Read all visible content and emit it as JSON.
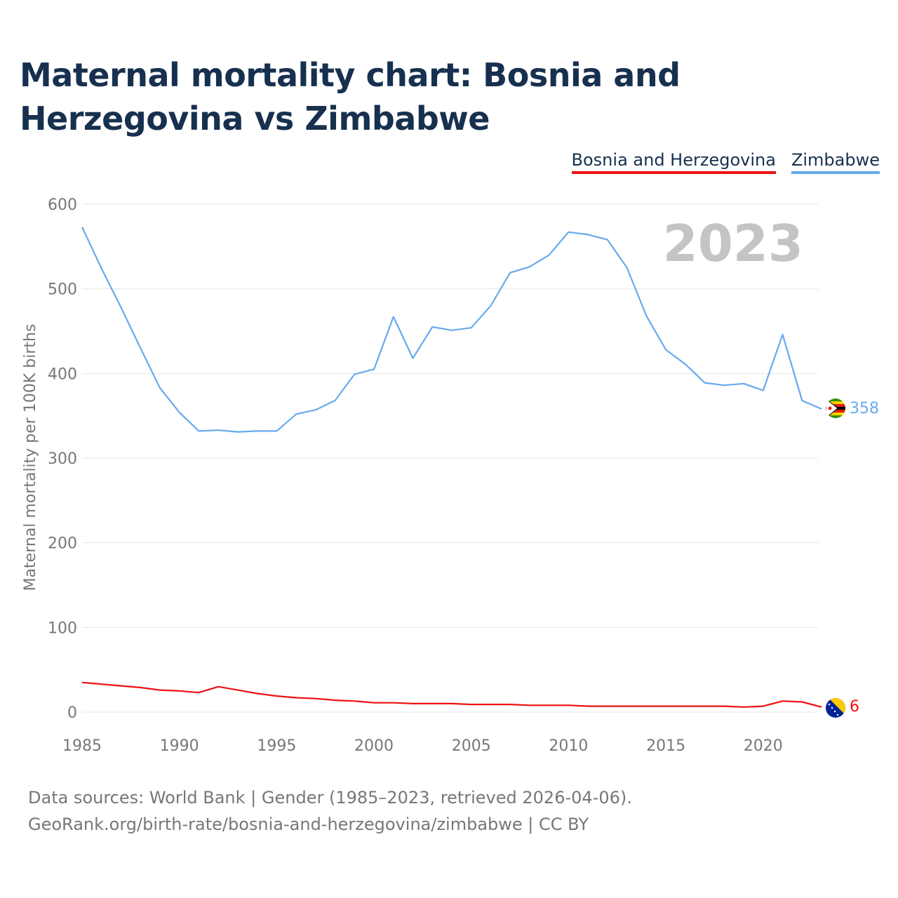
{
  "title": "Maternal mortality chart: Bosnia and Herzegovina vs Zimbabwe",
  "legend": [
    "Bosnia and Herzegovina",
    "Zimbabwe"
  ],
  "source_line1": "Data sources: World Bank | Gender (1985–2023, retrieved 2026-04-06).",
  "source_line2": "GeoRank.org/birth-rate/bosnia-and-herzegovina/zimbabwe | CC BY",
  "colors": {
    "bosnia": "#ee1111",
    "zimbabwe": "#66aaee",
    "title": "#17304f"
  },
  "chart_data": {
    "type": "line",
    "title": "Maternal mortality chart: Bosnia and Herzegovina vs Zimbabwe",
    "ylabel": "Maternal mortality per 100K births",
    "xlabel": "",
    "xlim": [
      1985,
      2023
    ],
    "ylim": [
      0,
      600
    ],
    "x_ticks": [
      1985,
      1990,
      1995,
      2000,
      2005,
      2010,
      2015,
      2020
    ],
    "y_ticks": [
      0,
      100,
      200,
      300,
      400,
      500,
      600
    ],
    "current_year_label": "2023",
    "grid": true,
    "legend_position": "top-right",
    "x": [
      1985,
      1986,
      1987,
      1988,
      1989,
      1990,
      1991,
      1992,
      1993,
      1994,
      1995,
      1996,
      1997,
      1998,
      1999,
      2000,
      2001,
      2002,
      2003,
      2004,
      2005,
      2006,
      2007,
      2008,
      2009,
      2010,
      2011,
      2012,
      2013,
      2014,
      2015,
      2016,
      2017,
      2018,
      2019,
      2020,
      2021,
      2022,
      2023
    ],
    "series": [
      {
        "name": "Bosnia and Herzegovina",
        "end_label": "6",
        "values": [
          35,
          33,
          31,
          29,
          26,
          25,
          23,
          30,
          26,
          22,
          19,
          17,
          16,
          14,
          13,
          11,
          11,
          10,
          10,
          10,
          9,
          9,
          9,
          8,
          8,
          8,
          7,
          7,
          7,
          7,
          7,
          7,
          7,
          7,
          6,
          7,
          13,
          12,
          6
        ]
      },
      {
        "name": "Zimbabwe",
        "end_label": "358",
        "values": [
          573,
          524,
          478,
          430,
          383,
          354,
          332,
          333,
          331,
          332,
          332,
          352,
          357,
          368,
          399,
          405,
          467,
          418,
          455,
          451,
          454,
          480,
          519,
          526,
          540,
          567,
          564,
          558,
          525,
          468,
          428,
          411,
          389,
          386,
          388,
          380,
          446,
          368,
          358
        ]
      }
    ]
  }
}
